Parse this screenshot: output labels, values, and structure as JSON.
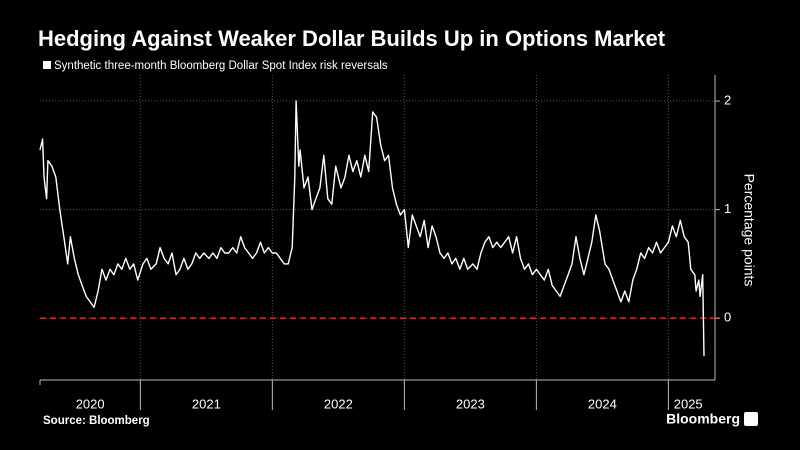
{
  "chart_data": {
    "type": "line",
    "title": "Hedging Against Weaker Dollar Builds Up in Options Market",
    "legend_label": "Synthetic three-month Bloomberg Dollar Spot Index risk reversals",
    "y_axis_label": "Percentage points",
    "source": "Source: Bloomberg",
    "brand": "Bloomberg",
    "color": "#ffffff",
    "grid": true,
    "reference_line": {
      "value": 0,
      "color": "#e02424"
    },
    "xlim": [
      2020.24,
      2025.3
    ],
    "xticks": [
      2020,
      2021,
      2022,
      2023,
      2024,
      2025
    ],
    "ylim": [
      -0.57,
      2.24
    ],
    "yticks": [
      0,
      1,
      2
    ],
    "x": [
      2020.24,
      2020.26,
      2020.27,
      2020.29,
      2020.3,
      2020.33,
      2020.36,
      2020.39,
      2020.42,
      2020.45,
      2020.47,
      2020.5,
      2020.53,
      2020.56,
      2020.59,
      2020.62,
      2020.65,
      2020.68,
      2020.71,
      2020.74,
      2020.77,
      2020.8,
      2020.83,
      2020.86,
      2020.89,
      2020.92,
      2020.95,
      2020.98,
      2021.02,
      2021.05,
      2021.08,
      2021.12,
      2021.15,
      2021.18,
      2021.21,
      2021.24,
      2021.27,
      2021.3,
      2021.33,
      2021.36,
      2021.39,
      2021.42,
      2021.45,
      2021.48,
      2021.52,
      2021.55,
      2021.58,
      2021.61,
      2021.64,
      2021.67,
      2021.7,
      2021.73,
      2021.76,
      2021.79,
      2021.82,
      2021.85,
      2021.88,
      2021.91,
      2021.94,
      2021.97,
      2022.0,
      2022.03,
      2022.06,
      2022.09,
      2022.12,
      2022.15,
      2022.17,
      2022.18,
      2022.2,
      2022.21,
      2022.24,
      2022.27,
      2022.3,
      2022.33,
      2022.36,
      2022.39,
      2022.42,
      2022.45,
      2022.48,
      2022.52,
      2022.55,
      2022.58,
      2022.61,
      2022.64,
      2022.67,
      2022.7,
      2022.73,
      2022.76,
      2022.79,
      2022.82,
      2022.85,
      2022.88,
      2022.91,
      2022.94,
      2022.97,
      2023.0,
      2023.03,
      2023.06,
      2023.09,
      2023.12,
      2023.15,
      2023.18,
      2023.21,
      2023.24,
      2023.27,
      2023.3,
      2023.33,
      2023.36,
      2023.39,
      2023.42,
      2023.45,
      2023.48,
      2023.52,
      2023.55,
      2023.58,
      2023.61,
      2023.64,
      2023.67,
      2023.7,
      2023.73,
      2023.76,
      2023.79,
      2023.82,
      2023.85,
      2023.88,
      2023.91,
      2023.94,
      2023.97,
      2024.0,
      2024.03,
      2024.06,
      2024.09,
      2024.12,
      2024.15,
      2024.18,
      2024.21,
      2024.24,
      2024.27,
      2024.3,
      2024.33,
      2024.36,
      2024.39,
      2024.42,
      2024.45,
      2024.48,
      2024.52,
      2024.55,
      2024.58,
      2024.61,
      2024.64,
      2024.67,
      2024.7,
      2024.73,
      2024.76,
      2024.79,
      2024.82,
      2024.85,
      2024.88,
      2024.91,
      2024.94,
      2024.97,
      2025.0,
      2025.03,
      2025.06,
      2025.09,
      2025.12,
      2025.15,
      2025.17,
      2025.2,
      2025.21,
      2025.23,
      2025.24,
      2025.26,
      2025.27
    ],
    "values": [
      1.55,
      1.65,
      1.3,
      1.1,
      1.45,
      1.4,
      1.3,
      1.0,
      0.75,
      0.5,
      0.75,
      0.55,
      0.4,
      0.3,
      0.2,
      0.15,
      0.1,
      0.25,
      0.45,
      0.35,
      0.45,
      0.4,
      0.5,
      0.45,
      0.55,
      0.45,
      0.5,
      0.35,
      0.5,
      0.55,
      0.45,
      0.5,
      0.65,
      0.55,
      0.5,
      0.6,
      0.4,
      0.45,
      0.55,
      0.45,
      0.5,
      0.6,
      0.55,
      0.6,
      0.55,
      0.6,
      0.55,
      0.65,
      0.6,
      0.6,
      0.65,
      0.6,
      0.75,
      0.65,
      0.6,
      0.55,
      0.6,
      0.7,
      0.6,
      0.65,
      0.6,
      0.6,
      0.55,
      0.5,
      0.5,
      0.65,
      1.3,
      2.0,
      1.4,
      1.55,
      1.2,
      1.3,
      1.0,
      1.1,
      1.2,
      1.5,
      1.1,
      1.05,
      1.4,
      1.2,
      1.3,
      1.5,
      1.35,
      1.45,
      1.3,
      1.5,
      1.35,
      1.9,
      1.85,
      1.6,
      1.45,
      1.5,
      1.2,
      1.05,
      0.95,
      1.0,
      0.65,
      0.95,
      0.85,
      0.75,
      0.9,
      0.65,
      0.85,
      0.75,
      0.6,
      0.55,
      0.6,
      0.5,
      0.55,
      0.45,
      0.55,
      0.45,
      0.5,
      0.45,
      0.6,
      0.7,
      0.75,
      0.65,
      0.7,
      0.65,
      0.7,
      0.75,
      0.6,
      0.75,
      0.55,
      0.45,
      0.5,
      0.4,
      0.45,
      0.4,
      0.35,
      0.45,
      0.3,
      0.25,
      0.2,
      0.3,
      0.4,
      0.5,
      0.75,
      0.55,
      0.4,
      0.55,
      0.7,
      0.95,
      0.8,
      0.5,
      0.45,
      0.35,
      0.25,
      0.15,
      0.25,
      0.15,
      0.35,
      0.45,
      0.6,
      0.55,
      0.65,
      0.6,
      0.7,
      0.6,
      0.65,
      0.7,
      0.85,
      0.75,
      0.9,
      0.75,
      0.7,
      0.45,
      0.4,
      0.25,
      0.35,
      0.2,
      0.4,
      -0.35
    ]
  }
}
